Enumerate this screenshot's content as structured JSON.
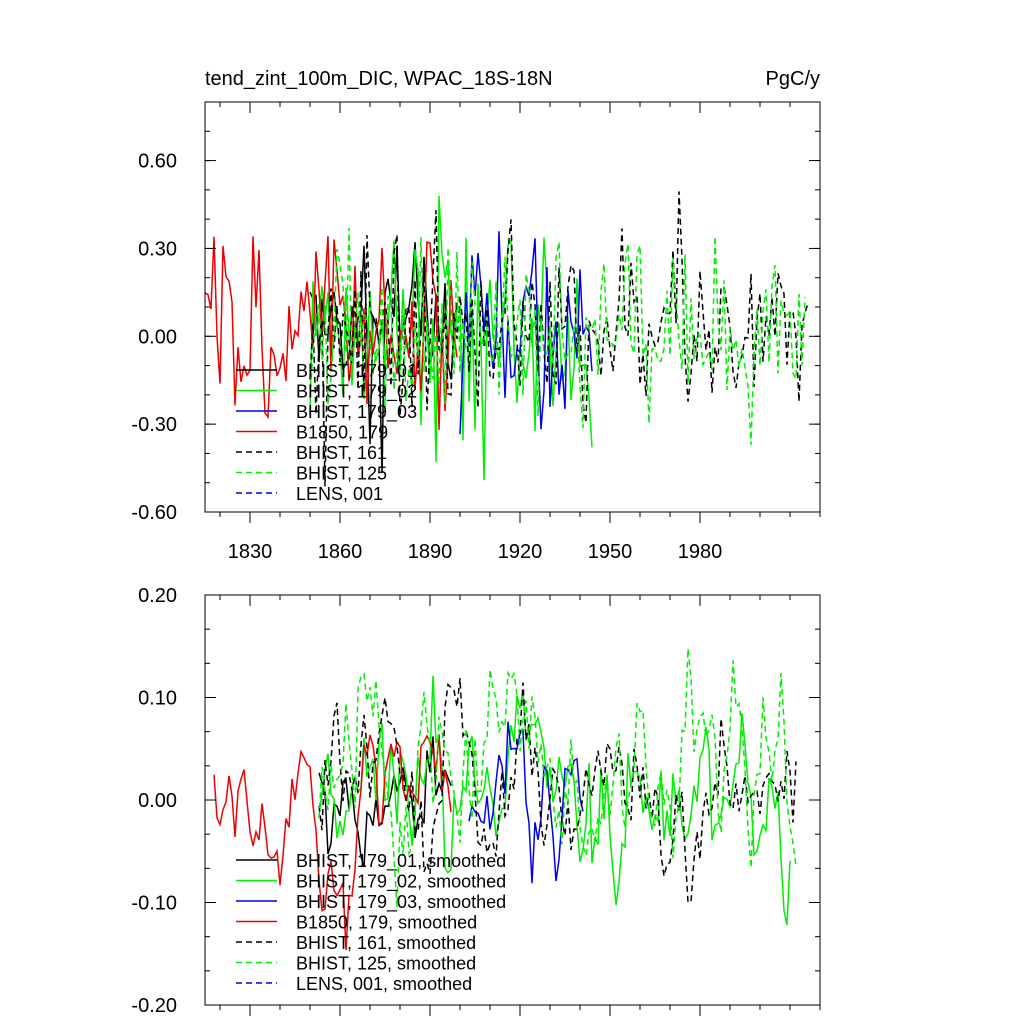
{
  "figure": {
    "title_left": "tend_zint_100m_DIC, WPAC_18S-18N",
    "title_right": "PgC/y"
  },
  "colors": {
    "black": "#000000",
    "green": "#00ee00",
    "blue": "#0000ee",
    "red": "#ee0000"
  },
  "chart_data": [
    {
      "type": "line",
      "title": "tend_zint_100m_DIC, WPAC_18S-18N",
      "units": "PgC/y",
      "xlim": [
        1815,
        2020
      ],
      "ylim": [
        -0.6,
        0.8
      ],
      "x_ticks": [
        1830,
        1860,
        1890,
        1920,
        1950,
        1980
      ],
      "x_tick_labels": [
        "1830",
        "1860",
        "1890",
        "1920",
        "1950",
        "1980"
      ],
      "y_ticks": [
        -0.6,
        -0.3,
        0.0,
        0.3,
        0.6
      ],
      "y_tick_labels": [
        "-0.60",
        "-0.30",
        "0.00",
        "0.30",
        "0.60"
      ],
      "legend_location": "lower-left",
      "series": [
        {
          "name": "BHIST, 179_01",
          "label": "BHIST, 179_01",
          "color": "black",
          "dash": "solid",
          "start": 1850,
          "end": 1899,
          "seed": 11,
          "sd": 0.17
        },
        {
          "name": "BHIST, 179_02",
          "label": "BHIST, 179_02",
          "color": "green",
          "dash": "solid",
          "start": 1850,
          "end": 1944,
          "seed": 23,
          "sd": 0.17
        },
        {
          "name": "BHIST, 179_03",
          "label": "BHIST, 179_03",
          "color": "blue",
          "dash": "solid",
          "start": 1900,
          "end": 1944,
          "seed": 37,
          "sd": 0.17
        },
        {
          "name": "B1850, 179",
          "label": "B1850, 179",
          "color": "red",
          "dash": "solid",
          "start": 1815,
          "end": 1899,
          "seed": 41,
          "sd": 0.19
        },
        {
          "name": "BHIST, 161",
          "label": "BHIST, 161",
          "color": "black",
          "dash": "dashed",
          "start": 1850,
          "end": 2016,
          "seed": 53,
          "sd": 0.15
        },
        {
          "name": "BHIST, 125",
          "label": "BHIST, 125",
          "color": "green",
          "dash": "dashed",
          "start": 1850,
          "end": 2015,
          "seed": 67,
          "sd": 0.16
        },
        {
          "name": "LENS, 001",
          "label": "LENS, 001",
          "color": "blue",
          "dash": "dashed",
          "start": null,
          "end": null,
          "seed": 0,
          "sd": 0
        }
      ]
    },
    {
      "type": "line",
      "title": "",
      "units": "PgC/y",
      "xlim": [
        1815,
        2020
      ],
      "ylim": [
        -0.2,
        0.2
      ],
      "x_ticks": [
        1830,
        1860,
        1890,
        1920,
        1950,
        1980
      ],
      "x_tick_labels": [],
      "y_ticks": [
        -0.2,
        -0.1,
        0.0,
        0.1,
        0.2
      ],
      "y_tick_labels": [
        "-0.20",
        "-0.10",
        "0.00",
        "0.10",
        "0.20"
      ],
      "legend_location": "lower-left",
      "series": [
        {
          "name": "BHIST, 179_01, smoothed",
          "label": "BHIST, 179_01, smoothed",
          "color": "black",
          "dash": "solid",
          "start": 1853,
          "end": 1897,
          "seed": 71,
          "sd": 0.04
        },
        {
          "name": "BHIST, 179_02, smoothed",
          "label": "BHIST, 179_02, smoothed",
          "color": "green",
          "dash": "solid",
          "start": 1853,
          "end": 2010,
          "seed": 83,
          "sd": 0.045
        },
        {
          "name": "BHIST, 179_03, smoothed",
          "label": "BHIST, 179_03, smoothed",
          "color": "blue",
          "dash": "solid",
          "start": 1903,
          "end": 1941,
          "seed": 97,
          "sd": 0.04
        },
        {
          "name": "B1850, 179, smoothed",
          "label": "B1850, 179, smoothed",
          "color": "red",
          "dash": "solid",
          "start": 1818,
          "end": 1897,
          "seed": 101,
          "sd": 0.045
        },
        {
          "name": "BHIST, 161, smoothed",
          "label": "BHIST, 161, smoothed",
          "color": "black",
          "dash": "dashed",
          "start": 1853,
          "end": 2012,
          "seed": 113,
          "sd": 0.04
        },
        {
          "name": "BHIST, 125, smoothed",
          "label": "BHIST, 125, smoothed",
          "color": "green",
          "dash": "dashed",
          "start": 1853,
          "end": 2012,
          "seed": 127,
          "sd": 0.05
        },
        {
          "name": "LENS, 001, smoothed",
          "label": "LENS, 001, smoothed",
          "color": "blue",
          "dash": "dashed",
          "start": null,
          "end": null,
          "seed": 0,
          "sd": 0
        }
      ]
    }
  ]
}
